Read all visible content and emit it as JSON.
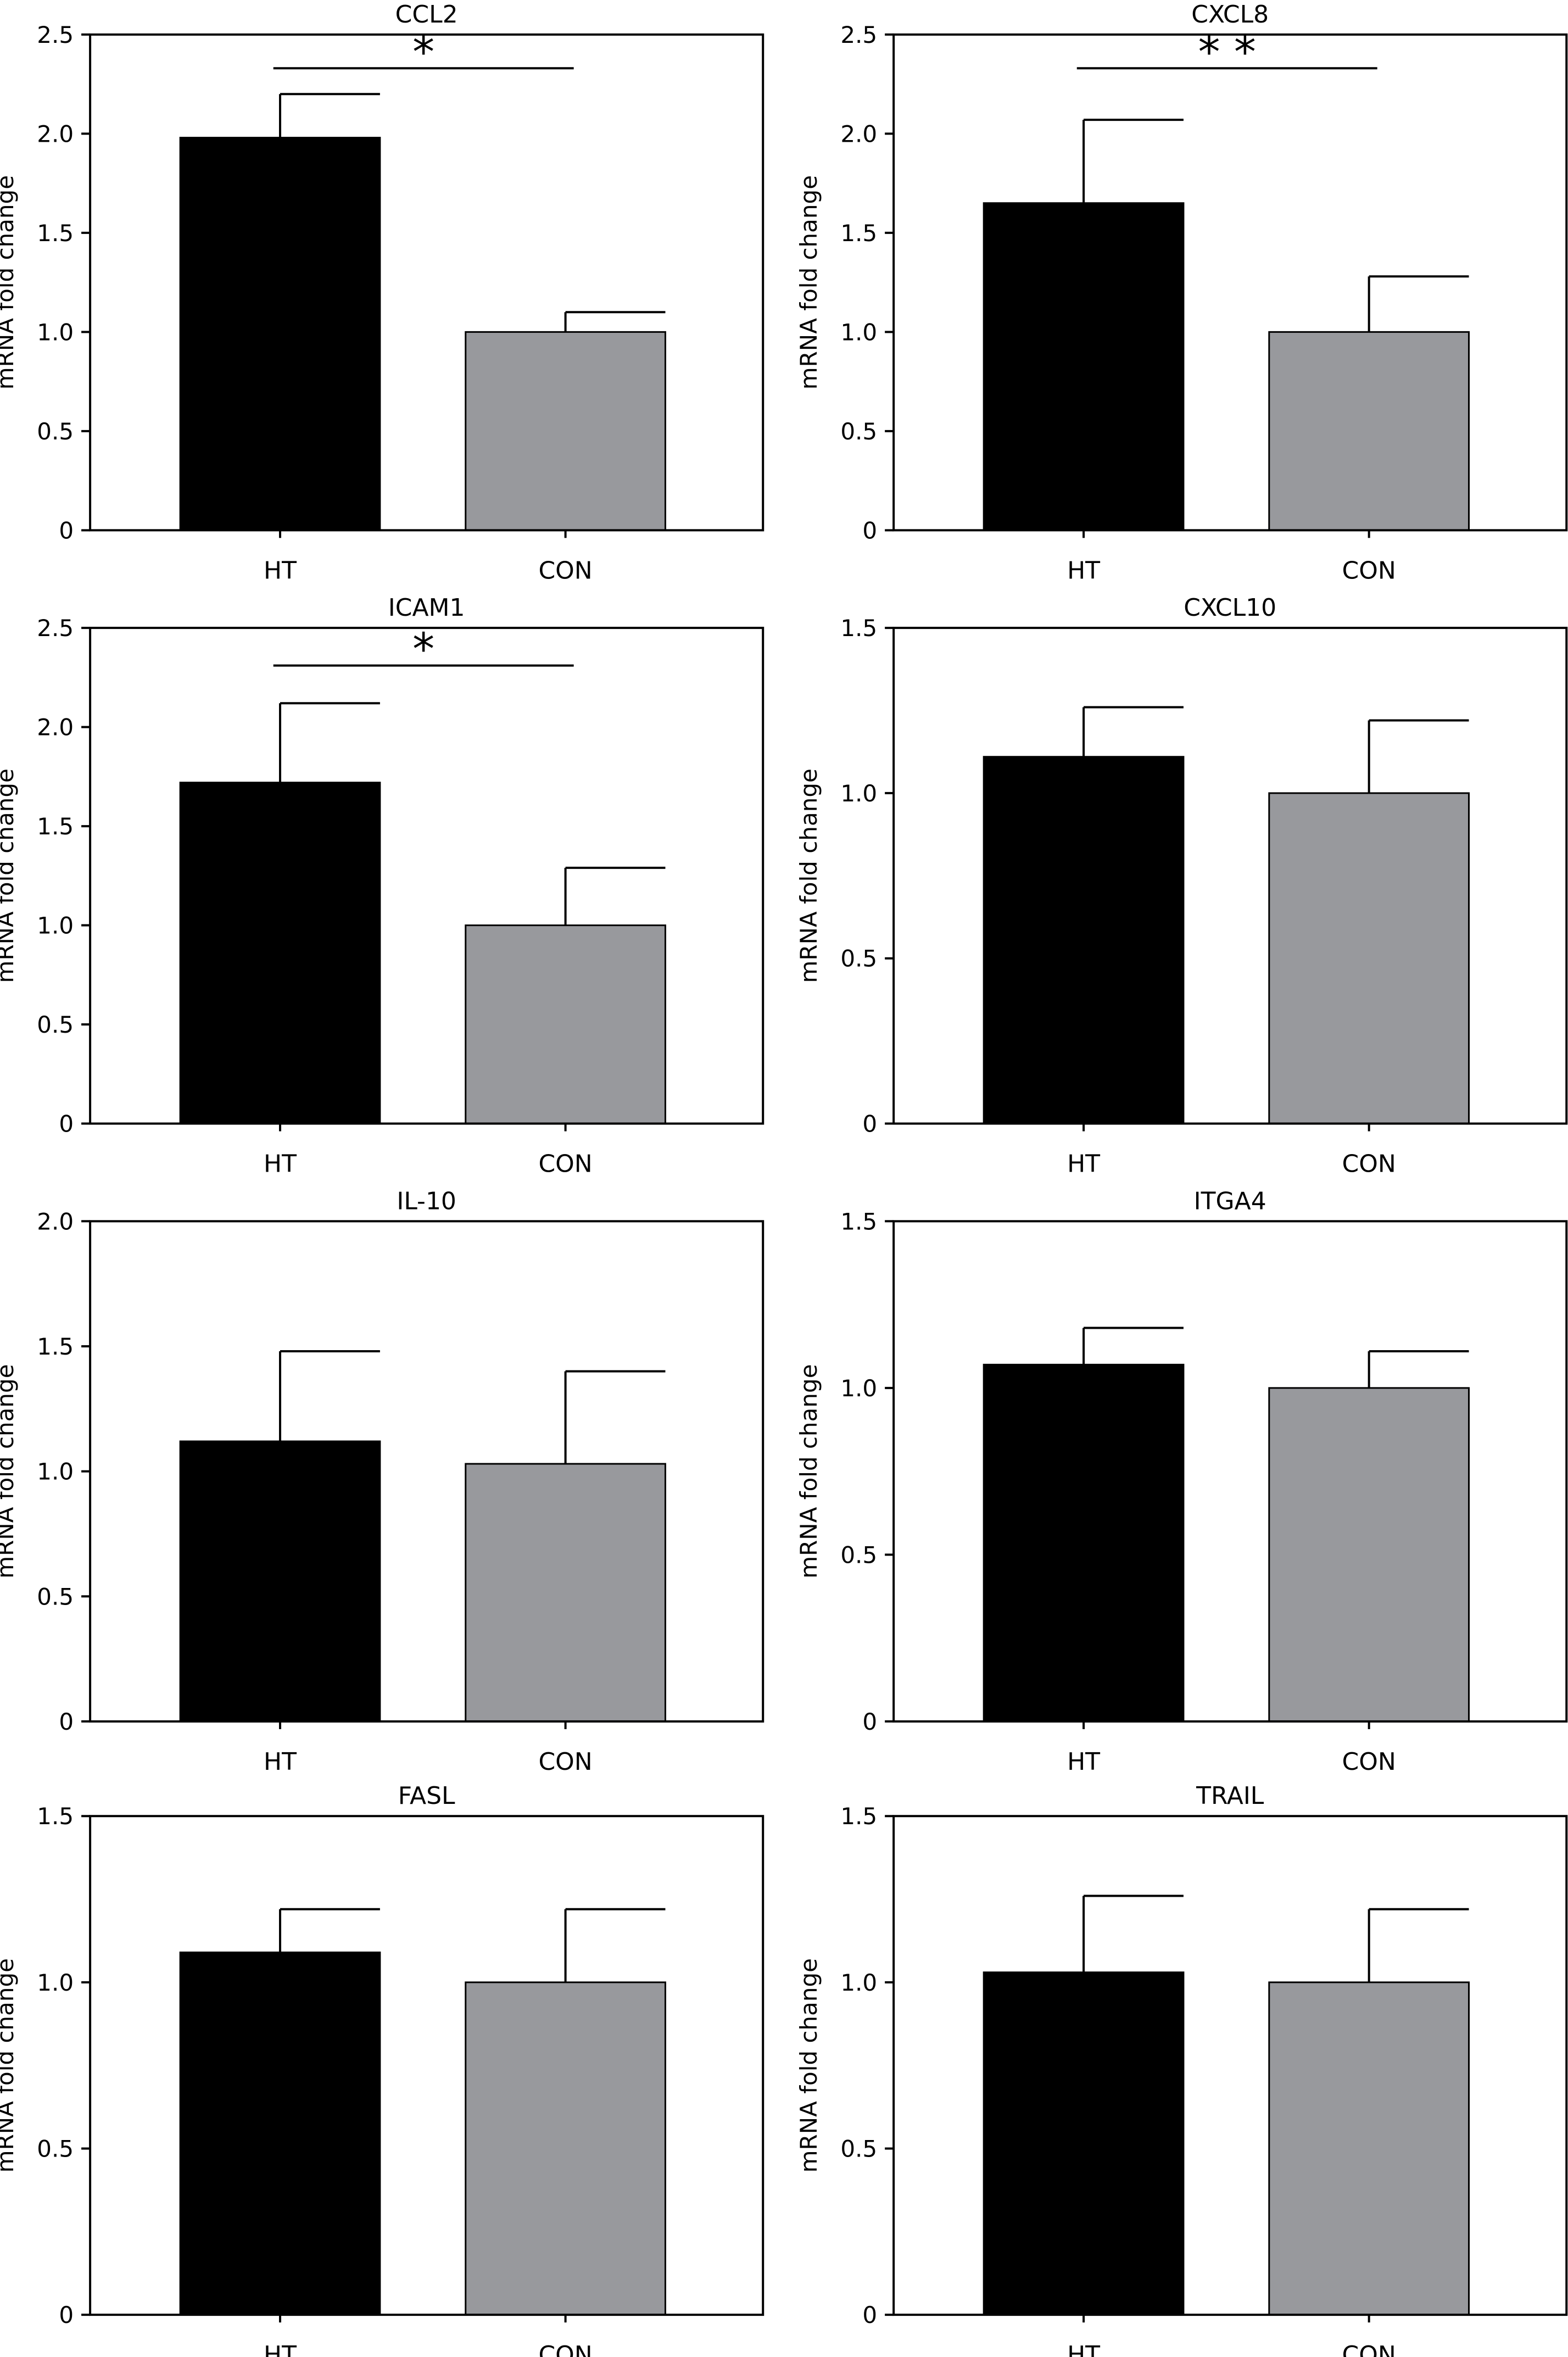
{
  "style": {
    "ht_color": "#000000",
    "con_color": "#98999d",
    "axis_color": "#000000"
  },
  "chart_data": [
    {
      "type": "bar",
      "title": "CCL2",
      "ylabel": "mRNA fold change",
      "categories": [
        "HT",
        "CON"
      ],
      "values": [
        1.98,
        1.0
      ],
      "errors": [
        0.22,
        0.1
      ],
      "ylim": [
        0,
        2.5
      ],
      "yticks": [
        0,
        0.5,
        1.0,
        1.5,
        2.0,
        2.5
      ],
      "ytick_labels": [
        "0",
        "0.5",
        "1.0",
        "1.5",
        "2.0",
        "2.5"
      ],
      "significance": {
        "label": "*",
        "y": 2.33
      }
    },
    {
      "type": "bar",
      "title": "CXCL8",
      "ylabel": "mRNA fold change",
      "categories": [
        "HT",
        "CON"
      ],
      "values": [
        1.65,
        1.0
      ],
      "errors": [
        0.42,
        0.28
      ],
      "ylim": [
        0,
        2.5
      ],
      "yticks": [
        0,
        0.5,
        1.0,
        1.5,
        2.0,
        2.5
      ],
      "ytick_labels": [
        "0",
        "0.5",
        "1.0",
        "1.5",
        "2.0",
        "2.5"
      ],
      "significance": {
        "label": "* *",
        "y": 2.33
      }
    },
    {
      "type": "bar",
      "title": "ICAM1",
      "ylabel": "mRNA fold change",
      "categories": [
        "HT",
        "CON"
      ],
      "values": [
        1.72,
        1.0
      ],
      "errors": [
        0.4,
        0.29
      ],
      "ylim": [
        0,
        2.5
      ],
      "yticks": [
        0,
        0.5,
        1.0,
        1.5,
        2.0,
        2.5
      ],
      "ytick_labels": [
        "0",
        "0.5",
        "1.0",
        "1.5",
        "2.0",
        "2.5"
      ],
      "significance": {
        "label": "*",
        "y": 2.31
      }
    },
    {
      "type": "bar",
      "title": "CXCL10",
      "ylabel": "mRNA fold change",
      "categories": [
        "HT",
        "CON"
      ],
      "values": [
        1.11,
        1.0
      ],
      "errors": [
        0.15,
        0.22
      ],
      "ylim": [
        0,
        1.5
      ],
      "yticks": [
        0,
        0.5,
        1.0,
        1.5
      ],
      "ytick_labels": [
        "0",
        "0.5",
        "1.0",
        "1.5"
      ]
    },
    {
      "type": "bar",
      "title": "IL-10",
      "ylabel": "mRNA fold change",
      "categories": [
        "HT",
        "CON"
      ],
      "values": [
        1.12,
        1.03
      ],
      "errors": [
        0.36,
        0.37
      ],
      "ylim": [
        0,
        2.0
      ],
      "yticks": [
        0,
        0.5,
        1.0,
        1.5,
        2.0
      ],
      "ytick_labels": [
        "0",
        "0.5",
        "1.0",
        "1.5",
        "2.0"
      ]
    },
    {
      "type": "bar",
      "title": "ITGA4",
      "ylabel": "mRNA fold change",
      "categories": [
        "HT",
        "CON"
      ],
      "values": [
        1.07,
        1.0
      ],
      "errors": [
        0.11,
        0.11
      ],
      "ylim": [
        0,
        1.5
      ],
      "yticks": [
        0,
        0.5,
        1.0,
        1.5
      ],
      "ytick_labels": [
        "0",
        "0.5",
        "1.0",
        "1.5"
      ]
    },
    {
      "type": "bar",
      "title": "FASL",
      "ylabel": "mRNA fold change",
      "categories": [
        "HT",
        "CON"
      ],
      "values": [
        1.09,
        1.0
      ],
      "errors": [
        0.13,
        0.22
      ],
      "ylim": [
        0,
        1.5
      ],
      "yticks": [
        0,
        0.5,
        1.0,
        1.5
      ],
      "ytick_labels": [
        "0",
        "0.5",
        "1.0",
        "1.5"
      ]
    },
    {
      "type": "bar",
      "title": "TRAIL",
      "ylabel": "mRNA fold change",
      "categories": [
        "HT",
        "CON"
      ],
      "values": [
        1.03,
        1.0
      ],
      "errors": [
        0.23,
        0.22
      ],
      "ylim": [
        0,
        1.5
      ],
      "yticks": [
        0,
        0.5,
        1.0,
        1.5
      ],
      "ytick_labels": [
        "0",
        "0.5",
        "1.0",
        "1.5"
      ]
    }
  ]
}
